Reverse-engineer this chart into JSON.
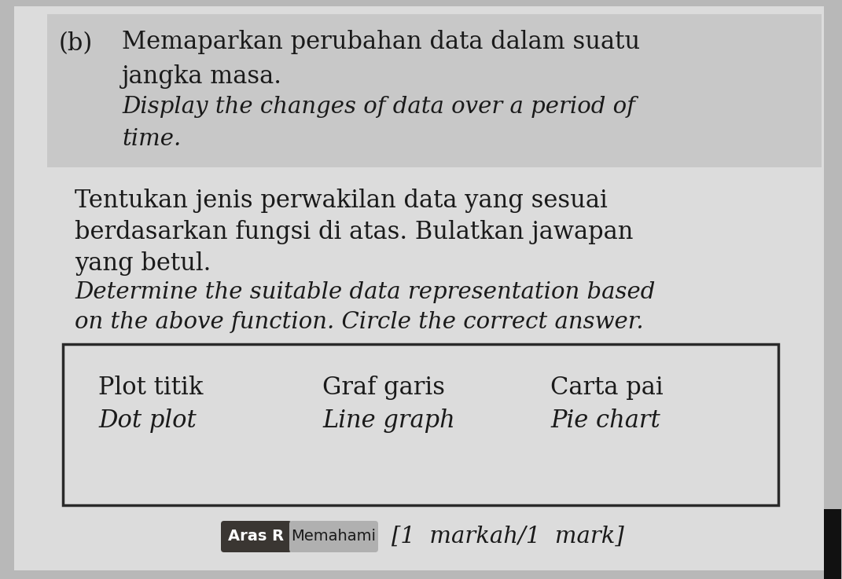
{
  "background_color": "#b8b8b8",
  "page_bg": "#dcdcdc",
  "shade_bg": "#c8c8c8",
  "label_b": "(b)",
  "malay_line1": "Memaparkan perubahan data dalam suatu",
  "malay_line2": "jangka masa.",
  "english_line1": "Display the changes of data over a period of",
  "english_line2": "time.",
  "para_malay1": "Tentukan jenis perwakilan data yang sesuai",
  "para_malay2": "berdasarkan fungsi di atas. Bulatkan jawapan",
  "para_malay3": "yang betul.",
  "para_eng1": "Determine the suitable data representation based",
  "para_eng2": "on the above function. Circle the correct answer.",
  "option1_top": "Plot titik",
  "option1_bot": "Dot plot",
  "option2_top": "Graf garis",
  "option2_bot": "Line graph",
  "option3_top": "Carta pai",
  "option3_bot": "Pie chart",
  "badge_aras": "Aras R",
  "badge_memahami": "Memahami",
  "mark_text": "[1  markah/1  mark]",
  "box_border": "#2a2a2a",
  "badge_dark_bg": "#3a3632",
  "badge_light_bg": "#b0b0b0",
  "badge_text_white": "#ffffff",
  "badge_text_dark": "#1a1a1a",
  "font_size_main": 22,
  "font_size_italic": 21,
  "font_size_options": 22,
  "font_size_badge": 14,
  "font_size_mark": 21,
  "text_color": "#1a1a1a"
}
